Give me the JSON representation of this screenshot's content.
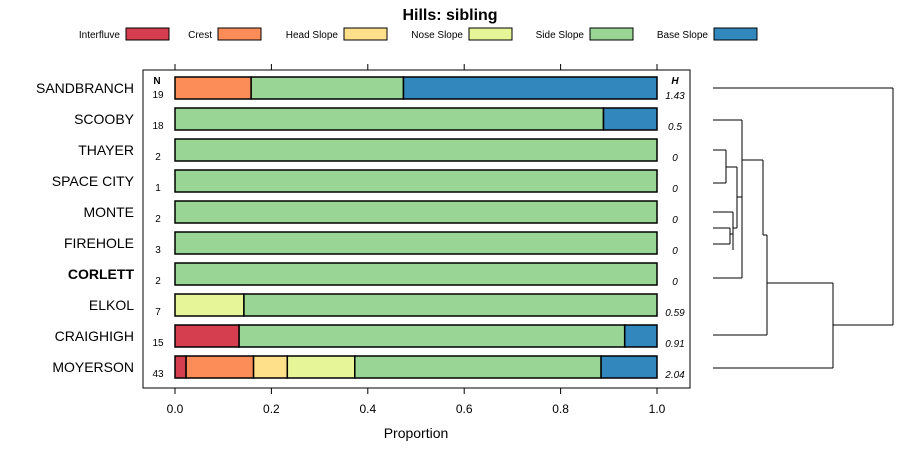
{
  "chart_data": {
    "type": "bar",
    "orientation": "horizontal",
    "stacked": true,
    "title": "Hills: sibling",
    "xlabel": "Proportion",
    "ylabel": "",
    "xlim": [
      0,
      1
    ],
    "xticks": [
      0.0,
      0.2,
      0.4,
      0.6,
      0.8,
      1.0
    ],
    "xtick_labels": [
      "0.0",
      "0.2",
      "0.4",
      "0.6",
      "0.8",
      "1.0"
    ],
    "n_header": "N",
    "h_header": "H",
    "legend": {
      "position": "top",
      "entries": [
        {
          "name": "Interfluve",
          "color": "#d53e4f"
        },
        {
          "name": "Crest",
          "color": "#fc8d59"
        },
        {
          "name": "Head Slope",
          "color": "#fee08b"
        },
        {
          "name": "Nose Slope",
          "color": "#e6f598"
        },
        {
          "name": "Side Slope",
          "color": "#99d594"
        },
        {
          "name": "Base Slope",
          "color": "#3288bd"
        }
      ]
    },
    "categories": [
      "SANDBRANCH",
      "SCOOBY",
      "THAYER",
      "SPACE CITY",
      "MONTE",
      "FIREHOLE",
      "CORLETT",
      "ELKOL",
      "CRAIGHIGH",
      "MOYERSON"
    ],
    "highlighted": "CORLETT",
    "n": [
      "19",
      "18",
      "2",
      "1",
      "2",
      "3",
      "2",
      "7",
      "15",
      "43"
    ],
    "h": [
      "1.43",
      "0.5",
      "0",
      "0",
      "0",
      "0",
      "0",
      "0.59",
      "0.91",
      "2.04"
    ],
    "series": [
      {
        "name": "Interfluve",
        "values": [
          0,
          0,
          0,
          0,
          0,
          0,
          0,
          0,
          0.133,
          0.023
        ]
      },
      {
        "name": "Crest",
        "values": [
          0.158,
          0,
          0,
          0,
          0,
          0,
          0,
          0,
          0,
          0.14
        ]
      },
      {
        "name": "Head Slope",
        "values": [
          0,
          0,
          0,
          0,
          0,
          0,
          0,
          0,
          0,
          0.07
        ]
      },
      {
        "name": "Nose Slope",
        "values": [
          0,
          0,
          0,
          0,
          0,
          0,
          0,
          0.143,
          0,
          0.14
        ]
      },
      {
        "name": "Side Slope",
        "values": [
          0.316,
          0.889,
          1,
          1,
          1,
          1,
          1,
          0.857,
          0.8,
          0.511
        ]
      },
      {
        "name": "Base Slope",
        "values": [
          0.526,
          0.111,
          0,
          0,
          0,
          0,
          0,
          0,
          0.067,
          0.116
        ]
      }
    ]
  }
}
